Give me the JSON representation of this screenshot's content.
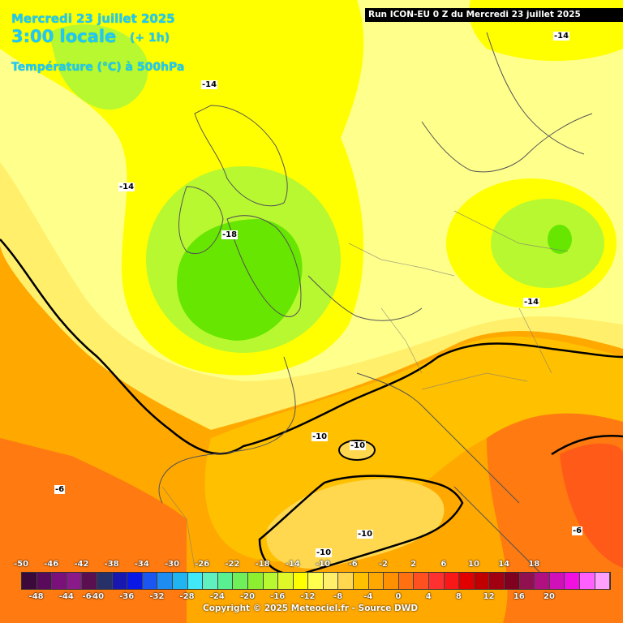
{
  "header": {
    "date_line": "Mercredi 23 juillet 2025",
    "time_line": "3:00 locale",
    "offset": "(+ 1h)",
    "field": "Température (°C) à 500hPa"
  },
  "run_info": "Run ICON-EU 0 Z du Mercredi 23 juillet 2025",
  "copyright": "Copyright © 2025 Meteociel.fr - Source DWD",
  "map_labels": [
    {
      "id": "m14-nw",
      "text": "-14"
    },
    {
      "id": "m14-atl",
      "text": "-14"
    },
    {
      "id": "m18-uk",
      "text": "-18"
    },
    {
      "id": "m14-pl",
      "text": "-14"
    },
    {
      "id": "m14-ne",
      "text": "-14"
    },
    {
      "id": "m10-fr",
      "text": "-10"
    },
    {
      "id": "m10-fr2",
      "text": "-10"
    },
    {
      "id": "m6-sp",
      "text": "-6"
    },
    {
      "id": "m10-sp1",
      "text": "-10"
    },
    {
      "id": "m10-sp2",
      "text": "-10"
    },
    {
      "id": "m6-east",
      "text": "-6"
    }
  ],
  "scale": {
    "top_labels": [
      "-50",
      "-46",
      "-42",
      "-38",
      "-34",
      "-30",
      "-26",
      "-22",
      "-18",
      "-14",
      "-10",
      "-6",
      "-2",
      "2",
      "6",
      "10",
      "14",
      "18"
    ],
    "bottom_labels": [
      "-48",
      "-44",
      "-40",
      "-36",
      "-32",
      "-28",
      "-24",
      "-20",
      "-16",
      "-12",
      "-8",
      "-4",
      "0",
      "4",
      "8",
      "12",
      "16",
      "20"
    ],
    "extra_label": "-6",
    "colors": [
      "#3b0a3b",
      "#5a0a5a",
      "#7a107a",
      "#8a1a8a",
      "#5a1050",
      "#283068",
      "#1818b0",
      "#0a18e6",
      "#1c56f0",
      "#1e8cf0",
      "#20b4f0",
      "#40e8f8",
      "#60f0c0",
      "#58f090",
      "#70f058",
      "#8cf030",
      "#b8f830",
      "#e0f828",
      "#ffff00",
      "#ffff50",
      "#ffef6a",
      "#ffd850",
      "#ffc000",
      "#ffa800",
      "#ff9000",
      "#ff7010",
      "#ff5020",
      "#ff3030",
      "#f81818",
      "#e00000",
      "#c00000",
      "#a00010",
      "#800020",
      "#901050",
      "#b01080",
      "#d010b8",
      "#f010e0",
      "#ff60ff",
      "#ffa0ff"
    ]
  },
  "palette": {
    "green_core": "#66e600",
    "green": "#aaf028",
    "yellow": "#ffff00",
    "pale_yellow": "#ffff8c",
    "light_yellow": "#fff070",
    "orange_light": "#ffc000",
    "orange": "#ffa800",
    "orange_dark": "#ff7a10",
    "red_orange": "#ff5a18"
  }
}
